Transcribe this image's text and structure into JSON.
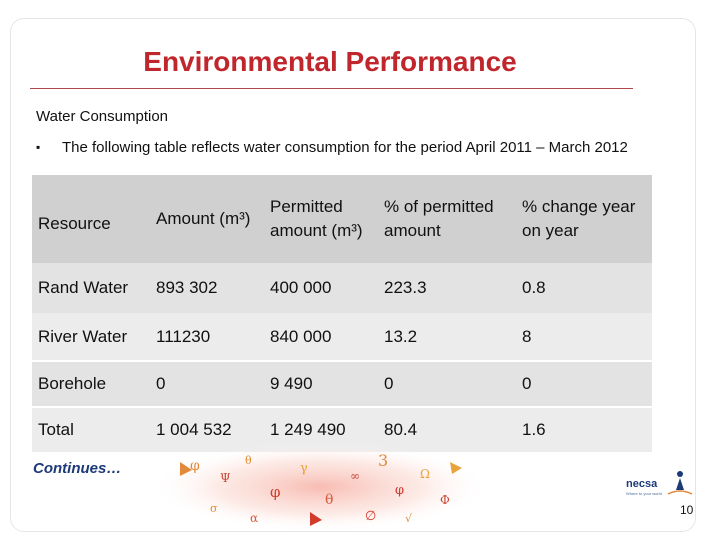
{
  "slide": {
    "title": "Environmental Performance",
    "subtitle": "Water Consumption",
    "bullet": "The following table reflects water consumption for the period April 2011 – March 2012",
    "continues": "Continues…",
    "page_number": "10",
    "logo_name": "necsa",
    "logo_tagline": "Where to your world",
    "accent_color": "#c0272d",
    "brand_color": "#1d3a78"
  },
  "table": {
    "headers": {
      "resource": "Resource",
      "amount": "Amount (m³)",
      "permitted": "Permitted amount (m³)",
      "pct_permitted": "% of permitted amount",
      "pct_change": "% change year on year"
    },
    "rows": [
      {
        "resource": "Rand Water",
        "amount": "893 302",
        "permitted": "400 000",
        "pct_permitted": "223.3",
        "pct_change": "0.8"
      },
      {
        "resource": "River Water",
        "amount": "111230",
        "permitted": "840 000",
        "pct_permitted": "13.2",
        "pct_change": "8"
      },
      {
        "resource": "Borehole",
        "amount": "0",
        "permitted": "9 490",
        "pct_permitted": "0",
        "pct_change": "0"
      },
      {
        "resource": "Total",
        "amount": "1 004 532",
        "permitted": "1 249 490",
        "pct_permitted": "80.4",
        "pct_change": "1.6"
      }
    ]
  }
}
